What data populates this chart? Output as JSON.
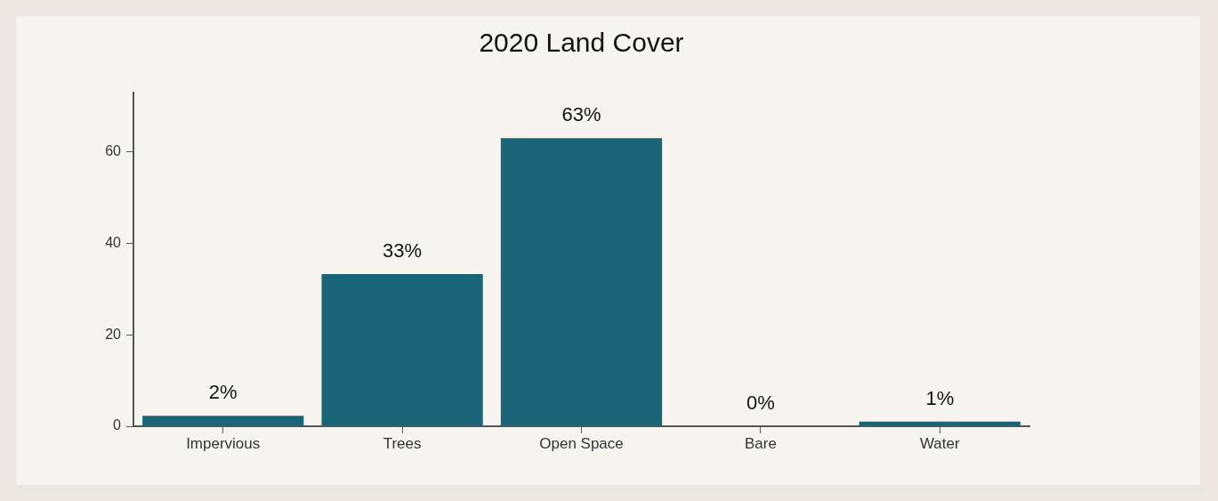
{
  "chart_data": {
    "type": "bar",
    "title": "2020 Land Cover",
    "categories": [
      "Impervious",
      "Trees",
      "Open Space",
      "Bare",
      "Water"
    ],
    "values": [
      2.3,
      33.3,
      63,
      0,
      1
    ],
    "value_labels": [
      "2%",
      "33%",
      "63%",
      "0%",
      "1%"
    ],
    "color": "#1a6678",
    "ylim": [
      0,
      73
    ],
    "yticks": [
      0,
      20,
      40,
      60
    ],
    "grid": false,
    "legend": false
  }
}
